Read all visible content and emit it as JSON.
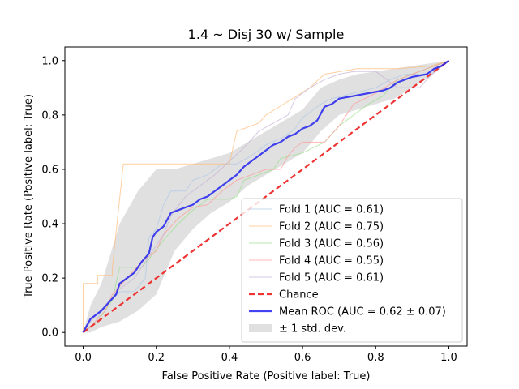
{
  "chart_data": {
    "type": "line",
    "title": "1.4 ~ Disj 30 w/ Sample",
    "xlabel": "False Positive Rate (Positive label: True)",
    "ylabel": "True Positive Rate (Positive label: True)",
    "xlim": [
      -0.05,
      1.05
    ],
    "ylim": [
      -0.05,
      1.05
    ],
    "xticks": [
      "0.0",
      "0.2",
      "0.4",
      "0.6",
      "0.8",
      "1.0"
    ],
    "yticks": [
      "0.0",
      "0.2",
      "0.4",
      "0.6",
      "0.8",
      "1.0"
    ],
    "grid": false,
    "legend_position": "lower-right",
    "series": [
      {
        "name": "Fold 1 (AUC = 0.61)",
        "color": "#aec7e8",
        "style": "solid",
        "points": [
          [
            0,
            0
          ],
          [
            0.03,
            0.03
          ],
          [
            0.05,
            0.08
          ],
          [
            0.08,
            0.12
          ],
          [
            0.1,
            0.15
          ],
          [
            0.14,
            0.15
          ],
          [
            0.17,
            0.2
          ],
          [
            0.18,
            0.35
          ],
          [
            0.2,
            0.38
          ],
          [
            0.22,
            0.47
          ],
          [
            0.24,
            0.52
          ],
          [
            0.28,
            0.52
          ],
          [
            0.3,
            0.56
          ],
          [
            0.34,
            0.58
          ],
          [
            0.38,
            0.62
          ],
          [
            0.42,
            0.62
          ],
          [
            0.46,
            0.65
          ],
          [
            0.5,
            0.69
          ],
          [
            0.55,
            0.72
          ],
          [
            0.58,
            0.75
          ],
          [
            0.6,
            0.79
          ],
          [
            0.65,
            0.84
          ],
          [
            0.68,
            0.86
          ],
          [
            0.74,
            0.88
          ],
          [
            0.8,
            0.9
          ],
          [
            0.84,
            0.93
          ],
          [
            0.88,
            0.95
          ],
          [
            0.94,
            0.95
          ],
          [
            1,
            1
          ]
        ]
      },
      {
        "name": "Fold 2 (AUC = 0.75)",
        "color": "#ffbb78",
        "style": "solid",
        "points": [
          [
            0,
            0
          ],
          [
            0,
            0.18
          ],
          [
            0.04,
            0.18
          ],
          [
            0.04,
            0.21
          ],
          [
            0.08,
            0.21
          ],
          [
            0.08,
            0.24
          ],
          [
            0.11,
            0.62
          ],
          [
            0.4,
            0.62
          ],
          [
            0.42,
            0.74
          ],
          [
            0.48,
            0.77
          ],
          [
            0.5,
            0.8
          ],
          [
            0.56,
            0.85
          ],
          [
            0.62,
            0.9
          ],
          [
            0.66,
            0.95
          ],
          [
            0.75,
            0.97
          ],
          [
            0.86,
            0.97
          ],
          [
            0.95,
            0.98
          ],
          [
            1,
            1
          ]
        ]
      },
      {
        "name": "Fold 3 (AUC = 0.56)",
        "color": "#98df8a",
        "style": "solid",
        "points": [
          [
            0,
            0
          ],
          [
            0.04,
            0.04
          ],
          [
            0.08,
            0.12
          ],
          [
            0.1,
            0.24
          ],
          [
            0.16,
            0.24
          ],
          [
            0.18,
            0.27
          ],
          [
            0.22,
            0.34
          ],
          [
            0.26,
            0.4
          ],
          [
            0.3,
            0.45
          ],
          [
            0.34,
            0.49
          ],
          [
            0.4,
            0.49
          ],
          [
            0.42,
            0.5
          ],
          [
            0.44,
            0.56
          ],
          [
            0.48,
            0.58
          ],
          [
            0.52,
            0.6
          ],
          [
            0.54,
            0.64
          ],
          [
            0.6,
            0.66
          ],
          [
            0.66,
            0.7
          ],
          [
            0.7,
            0.76
          ],
          [
            0.74,
            0.8
          ],
          [
            0.78,
            0.84
          ],
          [
            0.82,
            0.87
          ],
          [
            0.86,
            0.93
          ],
          [
            0.92,
            0.96
          ],
          [
            1,
            1
          ]
        ]
      },
      {
        "name": "Fold 4 (AUC = 0.55)",
        "color": "#ff9896",
        "style": "solid",
        "points": [
          [
            0,
            0
          ],
          [
            0.02,
            0.02
          ],
          [
            0.06,
            0.08
          ],
          [
            0.08,
            0.14
          ],
          [
            0.12,
            0.2
          ],
          [
            0.16,
            0.26
          ],
          [
            0.2,
            0.3
          ],
          [
            0.22,
            0.36
          ],
          [
            0.26,
            0.42
          ],
          [
            0.3,
            0.46
          ],
          [
            0.34,
            0.47
          ],
          [
            0.38,
            0.52
          ],
          [
            0.42,
            0.56
          ],
          [
            0.46,
            0.58
          ],
          [
            0.5,
            0.6
          ],
          [
            0.52,
            0.6
          ],
          [
            0.54,
            0.6
          ],
          [
            0.56,
            0.65
          ],
          [
            0.58,
            0.68
          ],
          [
            0.6,
            0.7
          ],
          [
            0.66,
            0.7
          ],
          [
            0.7,
            0.76
          ],
          [
            0.74,
            0.84
          ],
          [
            0.8,
            0.88
          ],
          [
            0.86,
            0.93
          ],
          [
            0.92,
            0.96
          ],
          [
            1,
            1
          ]
        ]
      },
      {
        "name": "Fold 5 (AUC = 0.61)",
        "color": "#c5b0d5",
        "style": "solid",
        "points": [
          [
            0,
            0
          ],
          [
            0.02,
            0.04
          ],
          [
            0.06,
            0.1
          ],
          [
            0.1,
            0.16
          ],
          [
            0.14,
            0.2
          ],
          [
            0.18,
            0.28
          ],
          [
            0.22,
            0.36
          ],
          [
            0.24,
            0.43
          ],
          [
            0.28,
            0.5
          ],
          [
            0.32,
            0.54
          ],
          [
            0.36,
            0.58
          ],
          [
            0.4,
            0.63
          ],
          [
            0.44,
            0.68
          ],
          [
            0.48,
            0.74
          ],
          [
            0.52,
            0.77
          ],
          [
            0.56,
            0.8
          ],
          [
            0.58,
            0.86
          ],
          [
            0.62,
            0.9
          ],
          [
            0.66,
            0.93
          ],
          [
            0.7,
            0.95
          ],
          [
            0.74,
            0.96
          ],
          [
            0.8,
            0.96
          ],
          [
            0.86,
            0.9
          ],
          [
            0.92,
            0.9
          ],
          [
            0.96,
            0.96
          ],
          [
            1,
            1
          ]
        ]
      },
      {
        "name": "Chance",
        "color": "#ee3333",
        "style": "dashed",
        "points": [
          [
            0,
            0
          ],
          [
            1,
            1
          ]
        ]
      },
      {
        "name": "Mean ROC (AUC = 0.62 ± 0.07)",
        "color": "#2222ee",
        "style": "solid-bold",
        "points": [
          [
            0,
            0
          ],
          [
            0.02,
            0.05
          ],
          [
            0.05,
            0.08
          ],
          [
            0.07,
            0.11
          ],
          [
            0.09,
            0.14
          ],
          [
            0.1,
            0.18
          ],
          [
            0.12,
            0.2
          ],
          [
            0.14,
            0.22
          ],
          [
            0.16,
            0.26
          ],
          [
            0.18,
            0.29
          ],
          [
            0.19,
            0.35
          ],
          [
            0.2,
            0.37
          ],
          [
            0.22,
            0.39
          ],
          [
            0.24,
            0.44
          ],
          [
            0.26,
            0.45
          ],
          [
            0.28,
            0.46
          ],
          [
            0.3,
            0.47
          ],
          [
            0.32,
            0.49
          ],
          [
            0.34,
            0.5
          ],
          [
            0.36,
            0.52
          ],
          [
            0.38,
            0.54
          ],
          [
            0.4,
            0.56
          ],
          [
            0.42,
            0.58
          ],
          [
            0.44,
            0.61
          ],
          [
            0.46,
            0.63
          ],
          [
            0.48,
            0.65
          ],
          [
            0.5,
            0.67
          ],
          [
            0.52,
            0.69
          ],
          [
            0.54,
            0.7
          ],
          [
            0.56,
            0.72
          ],
          [
            0.58,
            0.73
          ],
          [
            0.6,
            0.75
          ],
          [
            0.62,
            0.76
          ],
          [
            0.64,
            0.78
          ],
          [
            0.66,
            0.83
          ],
          [
            0.68,
            0.84
          ],
          [
            0.7,
            0.86
          ],
          [
            0.74,
            0.87
          ],
          [
            0.78,
            0.88
          ],
          [
            0.82,
            0.89
          ],
          [
            0.84,
            0.9
          ],
          [
            0.86,
            0.92
          ],
          [
            0.88,
            0.93
          ],
          [
            0.9,
            0.94
          ],
          [
            0.94,
            0.95
          ],
          [
            0.96,
            0.97
          ],
          [
            0.98,
            0.98
          ],
          [
            1,
            1
          ]
        ]
      }
    ],
    "band": {
      "name": "± 1 std. dev.",
      "color": "#d3d3d3",
      "x": [
        0,
        0.02,
        0.05,
        0.1,
        0.15,
        0.2,
        0.25,
        0.3,
        0.35,
        0.4,
        0.45,
        0.5,
        0.55,
        0.6,
        0.65,
        0.7,
        0.75,
        0.8,
        0.85,
        0.9,
        0.95,
        1
      ],
      "upper": [
        0,
        0.1,
        0.18,
        0.4,
        0.52,
        0.6,
        0.6,
        0.62,
        0.64,
        0.66,
        0.7,
        0.74,
        0.78,
        0.82,
        0.9,
        0.93,
        0.95,
        0.96,
        0.97,
        0.98,
        0.99,
        1
      ],
      "lower": [
        0,
        0,
        0.02,
        0.04,
        0.08,
        0.14,
        0.3,
        0.38,
        0.44,
        0.48,
        0.54,
        0.58,
        0.62,
        0.66,
        0.74,
        0.8,
        0.82,
        0.84,
        0.86,
        0.9,
        0.94,
        1
      ]
    }
  }
}
